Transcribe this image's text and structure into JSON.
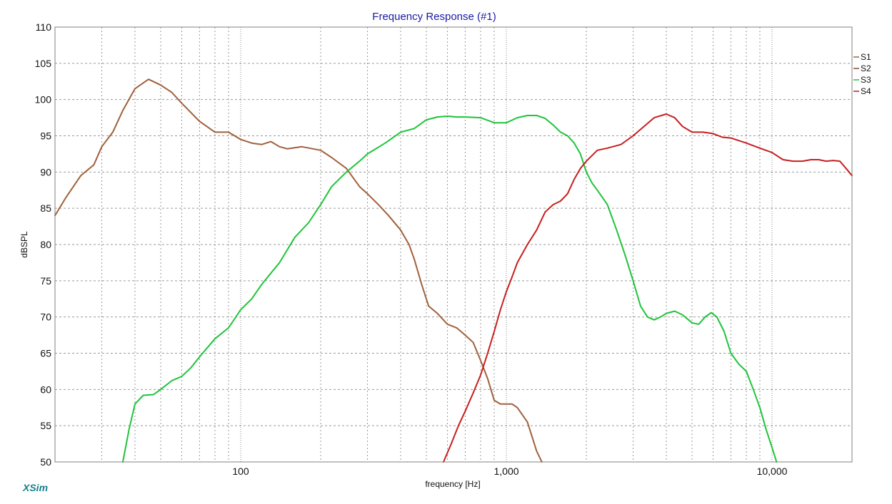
{
  "chart_data": {
    "type": "line",
    "title": "Frequency Response (#1)",
    "xlabel": "frequency [Hz]",
    "ylabel": "dBSPL",
    "x_scale": "log",
    "xlim": [
      20,
      20000
    ],
    "ylim": [
      50,
      110
    ],
    "y_ticks": [
      110,
      105,
      100,
      95,
      90,
      85,
      80,
      75,
      70,
      65,
      60,
      55,
      50
    ],
    "x_tick_labels": [
      {
        "value": 100,
        "label": "100"
      },
      {
        "value": 1000,
        "label": "1,000"
      },
      {
        "value": 10000,
        "label": "10,000"
      }
    ],
    "grid": true,
    "legend_position": "top-right",
    "brand": "XSim",
    "colors": {
      "title": "#1a1aa8",
      "grid_major": "#8c8c8c",
      "grid_minor": "#9a9a9a"
    },
    "series": [
      {
        "name": "S1",
        "color": "#a0603c",
        "points": [
          [
            20,
            84.0
          ],
          [
            22,
            86.5
          ],
          [
            25,
            89.5
          ],
          [
            28,
            91.0
          ],
          [
            30,
            93.5
          ],
          [
            33,
            95.5
          ],
          [
            36,
            98.5
          ],
          [
            40,
            101.5
          ],
          [
            45,
            102.8
          ],
          [
            50,
            102.0
          ],
          [
            55,
            101.0
          ],
          [
            60,
            99.5
          ],
          [
            70,
            97.0
          ],
          [
            80,
            95.5
          ],
          [
            90,
            95.5
          ],
          [
            100,
            94.5
          ],
          [
            110,
            94.0
          ],
          [
            120,
            93.8
          ],
          [
            130,
            94.2
          ],
          [
            140,
            93.5
          ],
          [
            150,
            93.2
          ],
          [
            170,
            93.5
          ],
          [
            200,
            93.0
          ],
          [
            220,
            92.0
          ],
          [
            250,
            90.5
          ],
          [
            280,
            88.0
          ],
          [
            300,
            87.0
          ],
          [
            330,
            85.5
          ],
          [
            360,
            84.0
          ],
          [
            400,
            82.0
          ],
          [
            430,
            80.0
          ],
          [
            450,
            78.0
          ],
          [
            480,
            74.5
          ],
          [
            510,
            71.5
          ],
          [
            550,
            70.5
          ],
          [
            600,
            69.0
          ],
          [
            650,
            68.5
          ],
          [
            700,
            67.5
          ],
          [
            750,
            66.5
          ],
          [
            800,
            64.0
          ],
          [
            850,
            61.5
          ],
          [
            900,
            58.5
          ],
          [
            950,
            58.0
          ],
          [
            1000,
            58.0
          ],
          [
            1050,
            58.0
          ],
          [
            1100,
            57.5
          ],
          [
            1200,
            55.5
          ],
          [
            1300,
            51.5
          ],
          [
            1360,
            50.0
          ]
        ]
      },
      {
        "name": "S2",
        "color": "#8c4a2e",
        "points": []
      },
      {
        "name": "S3",
        "color": "#1fc43a",
        "points": [
          [
            36,
            50.0
          ],
          [
            38,
            54.5
          ],
          [
            40,
            58.0
          ],
          [
            43,
            59.2
          ],
          [
            47,
            59.3
          ],
          [
            50,
            60.0
          ],
          [
            55,
            61.2
          ],
          [
            60,
            61.8
          ],
          [
            65,
            63.0
          ],
          [
            70,
            64.5
          ],
          [
            80,
            67.0
          ],
          [
            90,
            68.5
          ],
          [
            100,
            71.0
          ],
          [
            110,
            72.5
          ],
          [
            120,
            74.5
          ],
          [
            140,
            77.5
          ],
          [
            160,
            81.0
          ],
          [
            180,
            83.0
          ],
          [
            200,
            85.5
          ],
          [
            220,
            88.0
          ],
          [
            250,
            90.0
          ],
          [
            280,
            91.5
          ],
          [
            300,
            92.5
          ],
          [
            350,
            94.0
          ],
          [
            400,
            95.5
          ],
          [
            450,
            96.0
          ],
          [
            500,
            97.2
          ],
          [
            550,
            97.6
          ],
          [
            600,
            97.7
          ],
          [
            650,
            97.6
          ],
          [
            700,
            97.6
          ],
          [
            800,
            97.5
          ],
          [
            900,
            96.8
          ],
          [
            1000,
            96.8
          ],
          [
            1100,
            97.5
          ],
          [
            1200,
            97.8
          ],
          [
            1300,
            97.8
          ],
          [
            1400,
            97.4
          ],
          [
            1500,
            96.5
          ],
          [
            1600,
            95.5
          ],
          [
            1700,
            95.0
          ],
          [
            1800,
            94.0
          ],
          [
            1900,
            92.5
          ],
          [
            2000,
            90.0
          ],
          [
            2100,
            88.5
          ],
          [
            2200,
            87.5
          ],
          [
            2400,
            85.5
          ],
          [
            2600,
            82.0
          ],
          [
            2800,
            78.5
          ],
          [
            3000,
            75.0
          ],
          [
            3200,
            71.5
          ],
          [
            3400,
            70.0
          ],
          [
            3600,
            69.6
          ],
          [
            3800,
            70.0
          ],
          [
            4000,
            70.5
          ],
          [
            4300,
            70.8
          ],
          [
            4600,
            70.3
          ],
          [
            5000,
            69.2
          ],
          [
            5300,
            69.0
          ],
          [
            5600,
            70.0
          ],
          [
            5900,
            70.6
          ],
          [
            6200,
            70.0
          ],
          [
            6600,
            68.0
          ],
          [
            7000,
            65.0
          ],
          [
            7500,
            63.5
          ],
          [
            8000,
            62.5
          ],
          [
            8500,
            60.0
          ],
          [
            9000,
            57.5
          ],
          [
            9500,
            54.5
          ],
          [
            10000,
            52.0
          ],
          [
            10400,
            50.0
          ]
        ]
      },
      {
        "name": "S4",
        "color": "#c81e1e",
        "points": [
          [
            580,
            50.0
          ],
          [
            620,
            52.5
          ],
          [
            660,
            55.0
          ],
          [
            700,
            57.0
          ],
          [
            750,
            59.5
          ],
          [
            800,
            62.0
          ],
          [
            850,
            65.0
          ],
          [
            900,
            68.0
          ],
          [
            950,
            71.0
          ],
          [
            1000,
            73.5
          ],
          [
            1050,
            75.5
          ],
          [
            1100,
            77.5
          ],
          [
            1200,
            80.0
          ],
          [
            1300,
            82.0
          ],
          [
            1400,
            84.5
          ],
          [
            1500,
            85.5
          ],
          [
            1600,
            86.0
          ],
          [
            1700,
            87.0
          ],
          [
            1800,
            89.0
          ],
          [
            1900,
            90.5
          ],
          [
            2000,
            91.5
          ],
          [
            2200,
            93.0
          ],
          [
            2400,
            93.3
          ],
          [
            2700,
            93.8
          ],
          [
            3000,
            95.0
          ],
          [
            3300,
            96.3
          ],
          [
            3600,
            97.5
          ],
          [
            4000,
            98.0
          ],
          [
            4300,
            97.5
          ],
          [
            4600,
            96.3
          ],
          [
            5000,
            95.5
          ],
          [
            5500,
            95.5
          ],
          [
            6000,
            95.3
          ],
          [
            6500,
            94.8
          ],
          [
            7000,
            94.7
          ],
          [
            8000,
            94.0
          ],
          [
            9000,
            93.3
          ],
          [
            10000,
            92.7
          ],
          [
            11000,
            91.7
          ],
          [
            12000,
            91.5
          ],
          [
            13000,
            91.5
          ],
          [
            14000,
            91.7
          ],
          [
            15000,
            91.7
          ],
          [
            16000,
            91.5
          ],
          [
            17000,
            91.6
          ],
          [
            18000,
            91.5
          ],
          [
            19000,
            90.5
          ],
          [
            20000,
            89.5
          ]
        ]
      }
    ]
  }
}
